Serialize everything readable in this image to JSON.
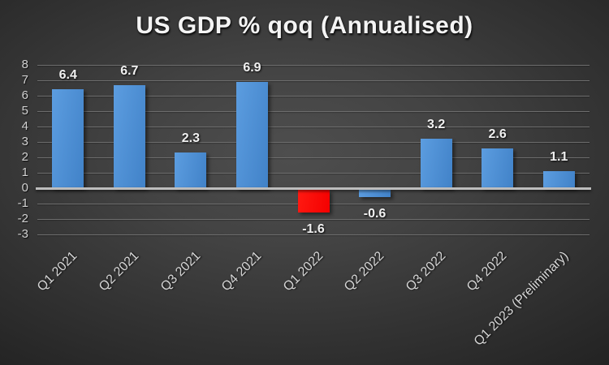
{
  "chart_data": {
    "type": "bar",
    "title": "US GDP % qoq (Annualised)",
    "categories": [
      "Q1 2021",
      "Q2 2021",
      "Q3 2021",
      "Q4 2021",
      "Q1 2022",
      "Q2 2022",
      "Q3 2022",
      "Q4 2022",
      "Q1 2023 (Preliminary)"
    ],
    "values": [
      6.4,
      6.7,
      2.3,
      6.9,
      -1.6,
      -0.6,
      3.2,
      2.6,
      1.1
    ],
    "value_labels": [
      "6.4",
      "6.7",
      "2.3",
      "6.9",
      "-1.6",
      "-0.6",
      "3.2",
      "2.6",
      "1.1"
    ],
    "yticks": [
      8,
      7,
      6,
      5,
      4,
      3,
      2,
      1,
      0,
      -1,
      -2,
      -3
    ],
    "ylim": [
      -3,
      8
    ],
    "xlabel": "",
    "ylabel": "",
    "grid": true,
    "legend": false,
    "highlight_index": 4
  },
  "colors": {
    "background_center": "#4e4e4e",
    "background_edge": "#1a1a1a",
    "bar_blue_light": "#5c9de0",
    "bar_blue_dark": "#4182c8",
    "bar_red_light": "#ff1a12",
    "bar_red": "#f40000",
    "gridline": "#6d6d6d",
    "axis_line": "#bdbdbd",
    "text": "#d6d6d6",
    "title_text": "#f4f4f4"
  }
}
